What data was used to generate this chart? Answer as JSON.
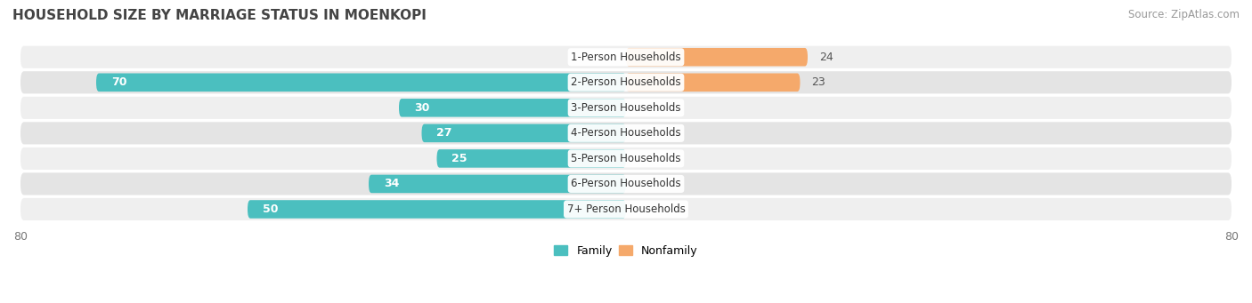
{
  "title": "HOUSEHOLD SIZE BY MARRIAGE STATUS IN MOENKOPI",
  "source": "Source: ZipAtlas.com",
  "categories": [
    "7+ Person Households",
    "6-Person Households",
    "5-Person Households",
    "4-Person Households",
    "3-Person Households",
    "2-Person Households",
    "1-Person Households"
  ],
  "family_values": [
    50,
    34,
    25,
    27,
    30,
    70,
    0
  ],
  "nonfamily_values": [
    0,
    0,
    0,
    0,
    0,
    23,
    24
  ],
  "family_color": "#4BBFBF",
  "nonfamily_color": "#F5A96B",
  "row_bg_colors": [
    "#EFEFEF",
    "#E4E4E4"
  ],
  "xlim": [
    -80,
    80
  ],
  "bar_height": 0.72,
  "title_fontsize": 11,
  "label_fontsize": 9,
  "tick_fontsize": 9,
  "source_fontsize": 8.5,
  "figsize": [
    14.06,
    3.41
  ],
  "dpi": 100
}
